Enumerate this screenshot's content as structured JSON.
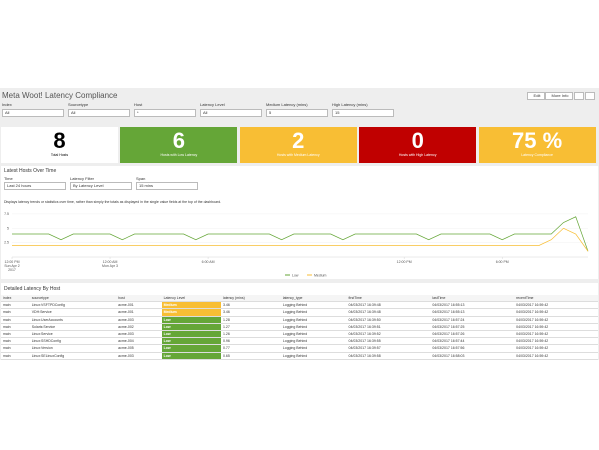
{
  "header": {
    "title": "Meta Woot! Latency Compliance",
    "buttons": [
      "Edit",
      "More Info"
    ]
  },
  "filters": [
    {
      "label": "Index",
      "value": "All"
    },
    {
      "label": "Sourcetype",
      "value": "All"
    },
    {
      "label": "Host",
      "value": "*"
    },
    {
      "label": "Latency Level",
      "value": "All"
    },
    {
      "label": "Medium Latency (mins)",
      "value": "5"
    },
    {
      "label": "High Latency (mins)",
      "value": "15"
    }
  ],
  "singles": [
    {
      "value": "8",
      "label": "Total Hosts",
      "color": "#ffffff",
      "text": "#000000"
    },
    {
      "value": "6",
      "label": "Hosts with Low Latency",
      "color": "#65a637",
      "text": "#ffffff"
    },
    {
      "value": "2",
      "label": "Hosts with Medium Latency",
      "color": "#f8be34",
      "text": "#ffffff"
    },
    {
      "value": "0",
      "label": "Hosts with High Latency",
      "color": "#c00000",
      "text": "#ffffff"
    },
    {
      "value": "75 %",
      "label": "Latency Compliance",
      "color": "#f8be34",
      "text": "#ffffff"
    }
  ],
  "panel": {
    "title": "Latest Hosts Over Time",
    "inputs": [
      {
        "label": "Time",
        "value": "Last 24 hours"
      },
      {
        "label": "Latency Filter",
        "value": "By Latency Level"
      },
      {
        "label": "Span",
        "value": "15 mins"
      }
    ],
    "description": "Displays latency trends or statistics over time, rather than simply the totals as displayed in the single value fields at the top of the dashboard.",
    "chart": {
      "type": "line",
      "ylim": [
        0,
        8
      ],
      "yticks": [
        {
          "value": 2.5,
          "label": "2.5"
        },
        5,
        {
          "value": 7.5,
          "label": "7.5"
        }
      ],
      "xlim": [
        0,
        47
      ],
      "xticks": [
        {
          "value": 0,
          "label": [
            "12:00 PM",
            "Sun Apr 2",
            "2017"
          ]
        },
        {
          "value": 8,
          "label": [
            "12:00 AM",
            "Mon Apr 3"
          ]
        },
        {
          "value": 16,
          "label": [
            "6:00 AM"
          ]
        },
        {
          "value": 32,
          "label": [
            "12:00 PM"
          ]
        },
        {
          "value": 40,
          "label": [
            "6:00 PM"
          ]
        }
      ],
      "series": [
        {
          "name": "Low",
          "color": "#65a637",
          "values": [
            4,
            4,
            4,
            4,
            3,
            4,
            4,
            4,
            4,
            3,
            4,
            4,
            4,
            4,
            4,
            3,
            4,
            4,
            4,
            4,
            4,
            4,
            3,
            4,
            4,
            4,
            4,
            3,
            4,
            4,
            4,
            4,
            4,
            4,
            3,
            4,
            4,
            4,
            4,
            4,
            3,
            4,
            4,
            4,
            4,
            6,
            7,
            1
          ]
        },
        {
          "name": "Medium",
          "color": "#f8be34",
          "values": [
            2,
            2,
            2,
            2,
            2,
            2,
            2,
            2,
            2,
            2,
            2,
            2,
            2,
            2,
            2,
            2,
            2,
            2,
            2,
            2,
            2,
            2,
            2,
            2,
            2,
            2,
            2,
            2,
            2,
            2,
            2,
            2,
            2,
            2,
            2,
            2,
            2,
            2,
            2,
            2,
            2,
            2,
            2,
            2,
            3,
            5,
            4,
            1
          ]
        }
      ]
    }
  },
  "table": {
    "title": "Detailed Latency By Host",
    "columns": [
      "index",
      "sourcetype",
      "host",
      "Latency Level",
      "latency (mins)",
      "latency_type",
      "firstTime",
      "lastTime",
      "recentTime"
    ],
    "rows": [
      [
        "main",
        "Linux:VSFTPDConfig",
        "acme-001",
        "Medium",
        "3.46",
        "Logging Behind",
        "04/03/2017 16:39:48",
        "04/03/2017 16:55:13",
        "04/03/2017 16:59:42"
      ],
      [
        "main",
        "VDH:Service",
        "acme-001",
        "Medium",
        "3.46",
        "Logging Behind",
        "04/03/2017 16:39:48",
        "04/03/2017 16:55:13",
        "04/03/2017 16:59:42"
      ],
      [
        "main",
        "Linux:UserAccounts",
        "acme-003",
        "Low",
        "1.28",
        "Logging Behind",
        "04/03/2017 16:39:50",
        "04/03/2017 16:57:24",
        "04/03/2017 16:59:42"
      ],
      [
        "main",
        "Solaris:Service",
        "acme-002",
        "Low",
        "1.27",
        "Logging Behind",
        "04/03/2017 16:39:51",
        "04/03/2017 16:57:25",
        "04/03/2017 16:59:42"
      ],
      [
        "main",
        "Linux:Service",
        "acme-003",
        "Low",
        "1.26",
        "Logging Behind",
        "04/03/2017 16:39:52",
        "04/03/2017 16:57:26",
        "04/03/2017 16:59:42"
      ],
      [
        "main",
        "Linux:SSHDConfig",
        "acme-004",
        "Low",
        "0.96",
        "Logging Behind",
        "04/03/2017 16:39:55",
        "04/03/2017 16:57:44",
        "04/03/2017 16:59:42"
      ],
      [
        "main",
        "Linux:Version",
        "acme-005",
        "Low",
        "0.77",
        "Logging Behind",
        "04/03/2017 16:39:57",
        "04/03/2017 16:57:56",
        "04/03/2017 16:59:42"
      ],
      [
        "main",
        "Linux:SELinuxConfig",
        "acme-003",
        "Low",
        "0.65",
        "Logging Behind",
        "04/03/2017 16:39:58",
        "04/03/2017 16:58:03",
        "04/03/2017 16:59:42"
      ]
    ]
  }
}
